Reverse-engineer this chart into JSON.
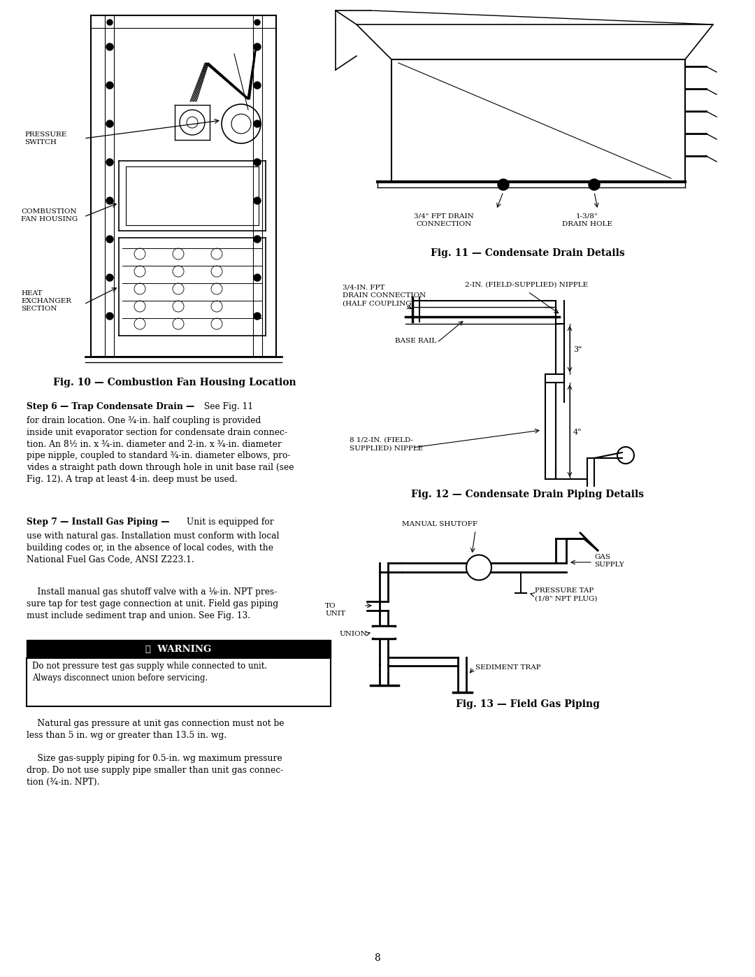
{
  "page_background": "#ffffff",
  "page_width": 10.8,
  "page_height": 13.97,
  "dpi": 100,
  "fig10_title": "Fig. 10 — Combustion Fan Housing Location",
  "fig11_title": "Fig. 11 — Condensate Drain Details",
  "fig12_title": "Fig. 12 — Condensate Drain Piping Details",
  "fig13_title": "Fig. 13 — Field Gas Piping",
  "step6_head": "Step 6 — Trap Condensate Drain —",
  "step6_head_cont": " See Fig. 11",
  "step6_body": "for drain location. One ¾-in. half coupling is provided\ninside unit evaporator section for condensate drain connec-\ntion. An 8½ in. x ¾-in. diameter and 2-in. x ¾-in. diameter\npipe nipple, coupled to standard ¾-in. diameter elbows, pro-\nvides a straight path down through hole in unit base rail (see\nFig. 12). A trap at least 4-in. deep must be used.",
  "step7_head": "Step 7 — Install Gas Piping —",
  "step7_head_cont": " Unit is equipped for",
  "step7_body": "use with natural gas. Installation must conform with local\nbuilding codes or, in the absence of local codes, with the\nNational Fuel Gas Code, ANSI Z223.1.",
  "step7_body2": "    Install manual gas shutoff valve with a ⅛-in. NPT pres-\nsure tap for test gage connection at unit. Field gas piping\nmust include sediment trap and union. See Fig. 13.",
  "warning_title": "⚠  WARNING",
  "warning_text": "Do not pressure test gas supply while connected to unit.\nAlways disconnect union before servicing.",
  "para1": "    Natural gas pressure at unit gas connection must not be\nless than 5 in. wg or greater than 13.5 in. wg.",
  "para2": "    Size gas-supply piping for 0.5-in. wg maximum pressure\ndrop. Do not use supply pipe smaller than unit gas connec-\ntion (¾-in. NPT).",
  "page_number": "8"
}
